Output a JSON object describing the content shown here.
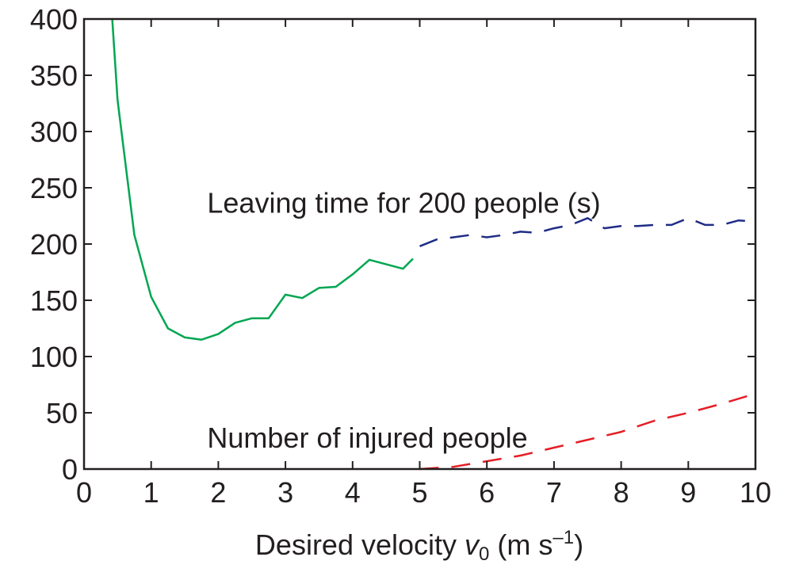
{
  "chart_data": {
    "type": "line",
    "xlabel": {
      "prefix": "Desired velocity ",
      "var": "v",
      "sub": "0",
      "unit_open": " (m s",
      "sup": "–1",
      "unit_close": ")"
    },
    "ylabel": "",
    "xlim": [
      0,
      10
    ],
    "ylim": [
      0,
      400
    ],
    "xticks": [
      "0",
      "1",
      "2",
      "3",
      "4",
      "5",
      "6",
      "7",
      "8",
      "9",
      "10"
    ],
    "yticks": [
      "0",
      "50",
      "100",
      "150",
      "200",
      "250",
      "300",
      "350",
      "400"
    ],
    "grid": false,
    "legend": "none",
    "annotations": [
      {
        "text": "Leaving time for 200 people (s)",
        "x": 2.0,
        "y": 237
      },
      {
        "text": "Number of injured people",
        "x": 2.0,
        "y": 28
      }
    ],
    "series": [
      {
        "style": "solid",
        "color": "#00a651",
        "x": [
          0.42,
          0.5,
          0.75,
          1.0,
          1.25,
          1.5,
          1.75,
          2.0,
          2.25,
          2.5,
          2.75,
          3.0,
          3.25,
          3.5,
          3.75,
          4.0,
          4.25,
          4.5,
          4.75,
          4.9
        ],
        "y": [
          400,
          328,
          208,
          153,
          125,
          117,
          115,
          120,
          130,
          134,
          134,
          155,
          152,
          161,
          162,
          173,
          186,
          182,
          178,
          187
        ]
      },
      {
        "style": "dashed",
        "color": "#1f2d86",
        "x": [
          5.0,
          5.25,
          5.5,
          5.75,
          6.0,
          6.25,
          6.5,
          6.75,
          7.0,
          7.25,
          7.5,
          7.75,
          8.0,
          8.25,
          8.5,
          8.75,
          9.0,
          9.25,
          9.5,
          9.75,
          10.0
        ],
        "y": [
          198,
          204,
          206,
          208,
          206,
          208,
          211,
          210,
          214,
          217,
          223,
          214,
          216,
          216,
          217,
          217,
          223,
          217,
          217,
          221,
          220
        ]
      },
      {
        "style": "dashed",
        "color": "#e41e26",
        "x": [
          5.0,
          5.5,
          6.0,
          6.5,
          7.0,
          7.5,
          8.0,
          8.5,
          9.0,
          9.5,
          10.0
        ],
        "y": [
          0,
          2,
          7,
          12,
          19,
          26,
          33,
          43,
          50,
          58,
          67
        ]
      }
    ]
  }
}
